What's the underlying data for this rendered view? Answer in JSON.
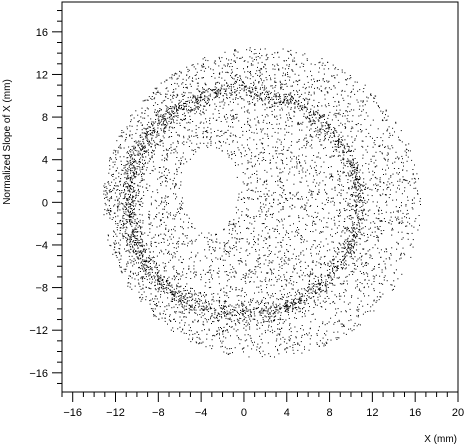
{
  "chart_data": {
    "type": "scatter",
    "title": "",
    "xlabel": "X (mm)",
    "ylabel": "Normalized Slope of X (mm)",
    "xlim": [
      -17,
      20
    ],
    "ylim": [
      -17.8,
      18.8
    ],
    "x_ticks": [
      -16,
      -12,
      -8,
      -4,
      0,
      4,
      8,
      12,
      16,
      20
    ],
    "y_ticks": [
      -16,
      -12,
      -8,
      -4,
      0,
      4,
      8,
      12,
      16
    ],
    "grid": false,
    "legend": "none",
    "point_color": "#000000",
    "distribution": {
      "description_of_shape": "dense ring plus diffuse halo with an empty hole left of centre",
      "ring_center": [
        0,
        0
      ],
      "ring_radius": 10.5,
      "halo_outer_radius": 15.5,
      "hole_center": [
        -3.2,
        1.2
      ]
    }
  }
}
